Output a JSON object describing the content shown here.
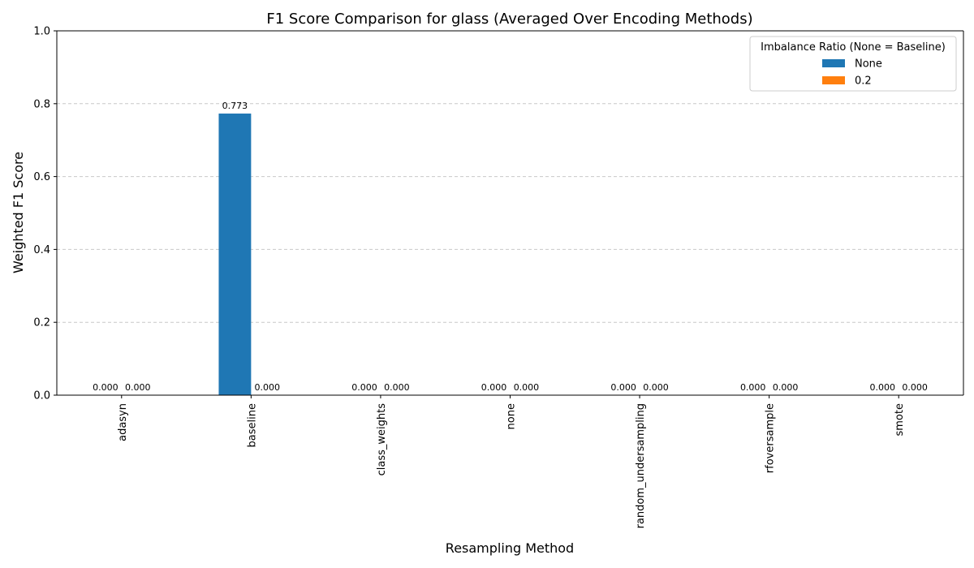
{
  "chart_data": {
    "type": "bar",
    "title": "F1 Score Comparison for glass (Averaged Over Encoding Methods)",
    "xlabel": "Resampling Method",
    "ylabel": "Weighted F1 Score",
    "ylim": [
      0,
      1.0
    ],
    "yticks": [
      "0.0",
      "0.2",
      "0.4",
      "0.6",
      "0.8",
      "1.0"
    ],
    "grid": "y-dashed",
    "categories": [
      "adasyn",
      "baseline",
      "class_weights",
      "none",
      "random_undersampling",
      "rfoversample",
      "smote"
    ],
    "legend": {
      "title": "Imbalance Ratio (None = Baseline)",
      "position": "top-right"
    },
    "series": [
      {
        "name": "None",
        "color": "#1f77b4",
        "values": [
          0.0,
          0.773,
          0.0,
          0.0,
          0.0,
          0.0,
          0.0
        ],
        "labels": [
          "0.000",
          "0.773",
          "0.000",
          "0.000",
          "0.000",
          "0.000",
          "0.000"
        ]
      },
      {
        "name": "0.2",
        "color": "#ff7f0e",
        "values": [
          0.0,
          0.0,
          0.0,
          0.0,
          0.0,
          0.0,
          0.0
        ],
        "labels": [
          "0.000",
          "0.000",
          "0.000",
          "0.000",
          "0.000",
          "0.000",
          "0.000"
        ]
      }
    ]
  }
}
